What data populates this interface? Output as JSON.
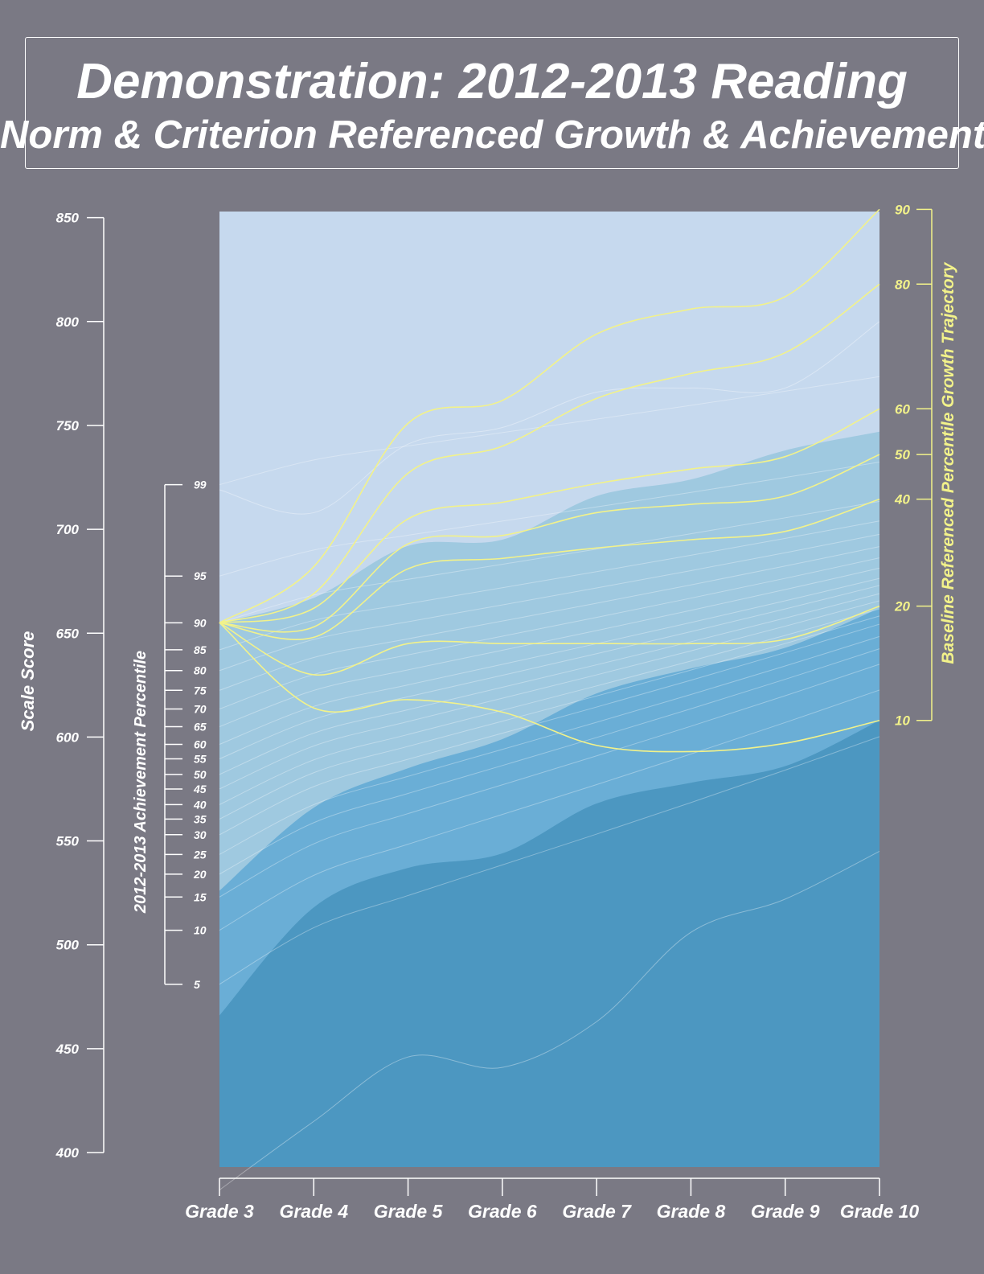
{
  "title": "Demonstration: 2012-2013 Reading",
  "subtitle": "Norm & Criterion Referenced Growth & Achievement",
  "colors": {
    "background": "#7a7984",
    "band_top": "#c6d9ee",
    "band_upper": "#9fc9e0",
    "band_mid": "#6aaed6",
    "band_low": "#4c97c1",
    "trajectory": "#f2f28a",
    "percentile_line": "#ffffff"
  },
  "chart_data": {
    "type": "line",
    "x_categories": [
      "Grade 3",
      "Grade 4",
      "Grade 5",
      "Grade 6",
      "Grade 7",
      "Grade 8",
      "Grade 9",
      "Grade 10"
    ],
    "left_axis": {
      "label": "Scale Score",
      "ticks": [
        400,
        450,
        500,
        550,
        600,
        650,
        700,
        750,
        800,
        850
      ],
      "range": [
        400,
        850
      ]
    },
    "percentile_axis": {
      "label": "2012-2013 Achievement Percentile",
      "ticks": [
        {
          "label": "99",
          "score": 721.5
        },
        {
          "label": "95",
          "score": 677.5
        },
        {
          "label": "90",
          "score": 655
        },
        {
          "label": "85",
          "score": 642
        },
        {
          "label": "80",
          "score": 632
        },
        {
          "label": "75",
          "score": 622.5
        },
        {
          "label": "70",
          "score": 613.5
        },
        {
          "label": "65",
          "score": 605
        },
        {
          "label": "60",
          "score": 596.5
        },
        {
          "label": "55",
          "score": 589.5
        },
        {
          "label": "50",
          "score": 582
        },
        {
          "label": "45",
          "score": 575
        },
        {
          "label": "40",
          "score": 567.5
        },
        {
          "label": "35",
          "score": 560.5
        },
        {
          "label": "30",
          "score": 553
        },
        {
          "label": "25",
          "score": 543.5
        },
        {
          "label": "20",
          "score": 534
        },
        {
          "label": "15",
          "score": 523
        },
        {
          "label": "10",
          "score": 507
        },
        {
          "label": "5",
          "score": 481
        }
      ]
    },
    "right_axis": {
      "label": "Baseline Referenced Percentile Growth Trajectory",
      "ticks": [
        {
          "label": "90",
          "score": 854
        },
        {
          "label": "80",
          "score": 818
        },
        {
          "label": "60",
          "score": 758
        },
        {
          "label": "50",
          "score": 736
        },
        {
          "label": "40",
          "score": 714.5
        },
        {
          "label": "20",
          "score": 663
        },
        {
          "label": "10",
          "score": 608
        }
      ]
    },
    "achievement_bands": [
      {
        "name": "top",
        "lower": [
          null,
          null,
          null,
          null,
          null,
          null,
          null,
          null
        ]
      },
      {
        "name": "upper",
        "lower": [
          526,
          566,
          585,
          599,
          621,
          633,
          643,
          662
        ]
      },
      {
        "name": "mid",
        "lower": [
          466,
          518,
          537,
          544,
          568,
          578,
          586,
          608
        ]
      },
      {
        "name": "bottom_top",
        "upper": [
          655,
          667,
          692,
          695,
          716,
          724,
          738,
          747
        ]
      }
    ],
    "growth_trajectories": [
      {
        "label": "90",
        "start": 655,
        "values": [
          655,
          682,
          751,
          762,
          794,
          806,
          812,
          854
        ]
      },
      {
        "label": "80",
        "start": 655,
        "values": [
          655,
          669,
          727,
          740,
          763,
          775,
          785,
          818
        ]
      },
      {
        "label": "60",
        "start": 655,
        "values": [
          655,
          662,
          705,
          713,
          722,
          729,
          735,
          758
        ]
      },
      {
        "label": "50",
        "start": 655,
        "values": [
          655,
          653,
          693,
          697,
          708,
          712,
          716,
          736
        ]
      },
      {
        "label": "40",
        "start": 655,
        "values": [
          655,
          648,
          681,
          686,
          691,
          695,
          699,
          714.5
        ]
      },
      {
        "label": "20",
        "start": 655,
        "values": [
          655,
          630,
          645,
          645,
          645,
          645,
          647,
          663
        ]
      },
      {
        "label": "10",
        "start": 655,
        "values": [
          655,
          614,
          618,
          612,
          596,
          593,
          597,
          608
        ]
      }
    ]
  }
}
